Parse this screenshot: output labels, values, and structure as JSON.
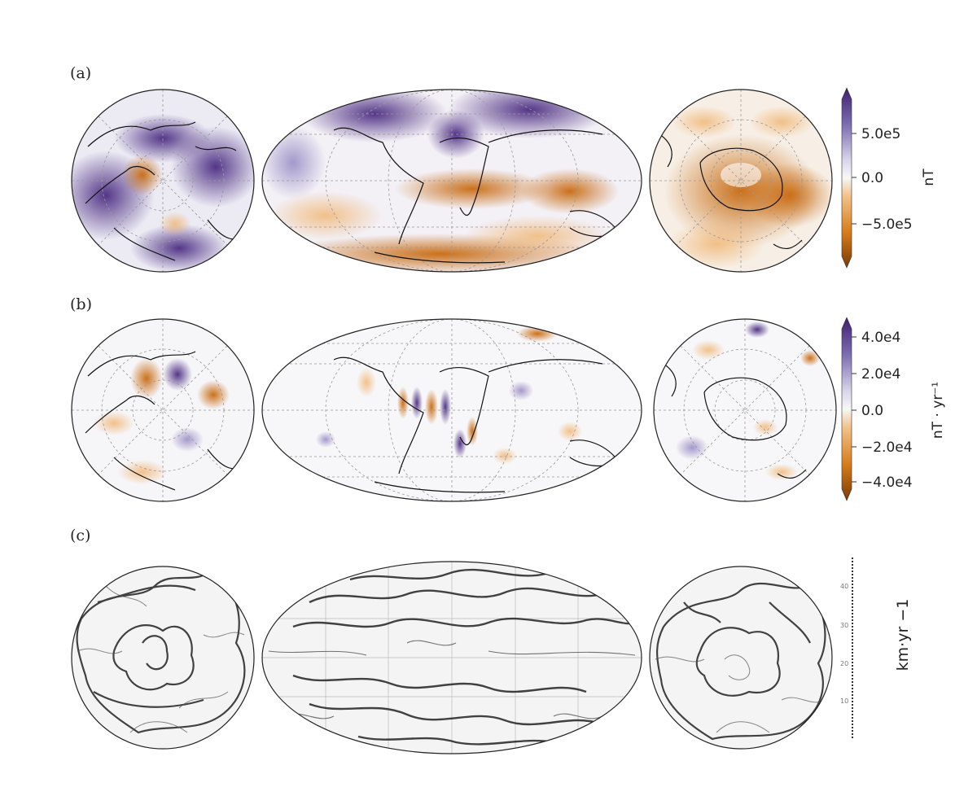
{
  "panels": {
    "a": {
      "label": "(a)"
    },
    "b": {
      "label": "(b)"
    },
    "c": {
      "label": "(c)"
    }
  },
  "colorbars": {
    "a": {
      "unit": "nT",
      "ticks": [
        "5.0e5",
        "0.0",
        "−5.0e5"
      ],
      "colors": [
        "#3f1f6e",
        "#7b6bb0",
        "#d8d4ea",
        "#f7f7f7",
        "#f2c28a",
        "#d87d1a",
        "#7a3a05"
      ]
    },
    "b": {
      "unit": "nT · yr⁻¹",
      "ticks": [
        "4.0e4",
        "2.0e4",
        "0.0",
        "−2.0e4",
        "−4.0e4"
      ],
      "colors": [
        "#3f1f6e",
        "#7b6bb0",
        "#d8d4ea",
        "#f7f7f7",
        "#f2c28a",
        "#d87d1a",
        "#7a3a05"
      ]
    },
    "c": {
      "unit": "km·yr −1",
      "ticks": [
        "40",
        "30",
        "20",
        "10"
      ]
    }
  }
}
